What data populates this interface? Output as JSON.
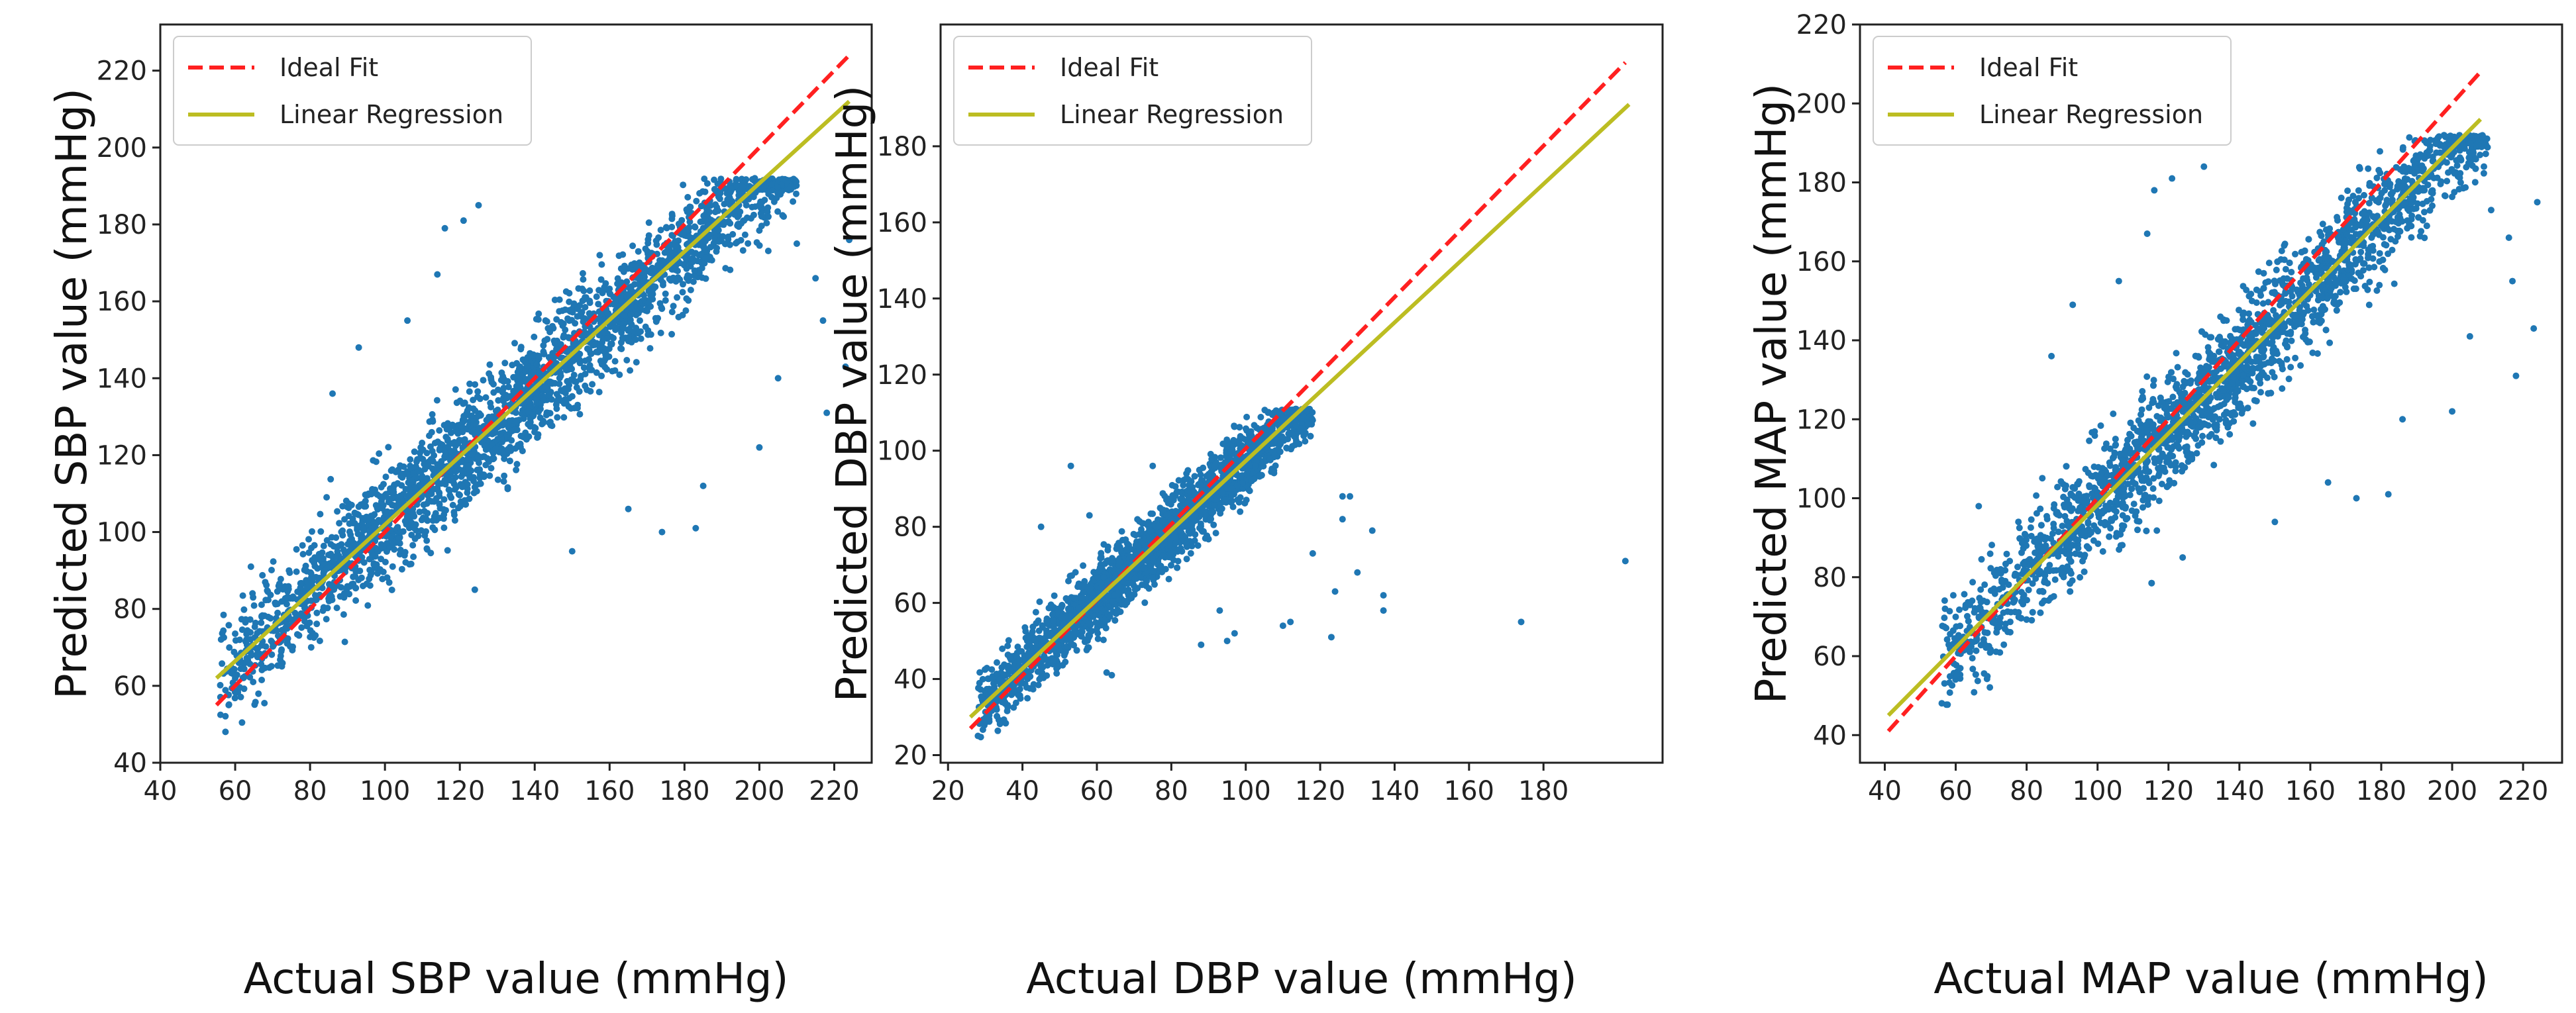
{
  "legend": {
    "ideal": "Ideal Fit",
    "regression": "Linear Regression"
  },
  "colors": {
    "points": "#1f77b4",
    "ideal": "#ff2020",
    "regression": "#bcbd22"
  },
  "chart_data": [
    {
      "type": "scatter",
      "id": "sbp",
      "xlabel": "Actual SBP value (mmHg)",
      "ylabel": "Predicted SBP value (mmHg)",
      "xlim": [
        40,
        230
      ],
      "ylim": [
        40,
        232
      ],
      "xticks": [
        40,
        60,
        80,
        100,
        120,
        140,
        160,
        180,
        200,
        220
      ],
      "yticks": [
        40,
        60,
        80,
        100,
        120,
        140,
        160,
        180,
        200,
        220
      ],
      "ideal_line": [
        [
          55,
          55
        ],
        [
          224,
          224
        ]
      ],
      "regression_line": [
        [
          55,
          62
        ],
        [
          224,
          212
        ]
      ],
      "cloud": {
        "x_range": [
          56,
          210
        ],
        "slope": 0.888,
        "intercept": 13.2,
        "spread": 7,
        "y_cap": 192
      },
      "outliers": [
        [
          63,
          72
        ],
        [
          60,
          62
        ],
        [
          86,
          136
        ],
        [
          93,
          148
        ],
        [
          106,
          155
        ],
        [
          116,
          179
        ],
        [
          121,
          181
        ],
        [
          125,
          185
        ],
        [
          114,
          167
        ],
        [
          150,
          95
        ],
        [
          165,
          106
        ],
        [
          183,
          101
        ],
        [
          200,
          122
        ],
        [
          205,
          140
        ],
        [
          210,
          175
        ],
        [
          215,
          166
        ],
        [
          217,
          155
        ],
        [
          218,
          131
        ],
        [
          223,
          143
        ],
        [
          224,
          176
        ],
        [
          124,
          85
        ],
        [
          174,
          100
        ],
        [
          185,
          112
        ]
      ]
    },
    {
      "type": "scatter",
      "id": "dbp",
      "xlabel": "Actual DBP value (mmHg)",
      "ylabel": "Predicted DBP value (mmHg)",
      "xlim": [
        18,
        212
      ],
      "ylim": [
        18,
        212
      ],
      "xticks": [
        20,
        40,
        60,
        80,
        100,
        120,
        140,
        160,
        180
      ],
      "yticks": [
        20,
        40,
        60,
        80,
        100,
        120,
        140,
        160,
        180
      ],
      "ideal_line": [
        [
          26,
          27
        ],
        [
          202,
          202
        ]
      ],
      "regression_line": [
        [
          26,
          30
        ],
        [
          203,
          191
        ]
      ],
      "cloud": {
        "x_range": [
          28,
          118
        ],
        "slope": 0.91,
        "intercept": 6.3,
        "spread": 4.5,
        "y_cap": 111
      },
      "outliers": [
        [
          53,
          96
        ],
        [
          75,
          96
        ],
        [
          45,
          80
        ],
        [
          58,
          83
        ],
        [
          126,
          88
        ],
        [
          128,
          88
        ],
        [
          126,
          82
        ],
        [
          134,
          79
        ],
        [
          118,
          73
        ],
        [
          130,
          68
        ],
        [
          137,
          62
        ],
        [
          137,
          58
        ],
        [
          124,
          63
        ],
        [
          112,
          55
        ],
        [
          110,
          54
        ],
        [
          123,
          51
        ],
        [
          174,
          55
        ],
        [
          202,
          71
        ],
        [
          93,
          58
        ],
        [
          95,
          50
        ],
        [
          97,
          52
        ],
        [
          88,
          49
        ],
        [
          64,
          41
        ]
      ]
    },
    {
      "type": "scatter",
      "id": "map",
      "xlabel": "Actual MAP value (mmHg)",
      "ylabel": "Predicted MAP value (mmHg)",
      "xlim": [
        33,
        231
      ],
      "ylim": [
        33,
        220
      ],
      "xticks": [
        40,
        60,
        80,
        100,
        120,
        140,
        160,
        180,
        200,
        220
      ],
      "yticks": [
        40,
        60,
        80,
        100,
        120,
        140,
        160,
        180,
        200,
        220
      ],
      "ideal_line": [
        [
          41,
          41
        ],
        [
          208,
          208
        ]
      ],
      "regression_line": [
        [
          41,
          45
        ],
        [
          208,
          196
        ]
      ],
      "cloud": {
        "x_range": [
          56,
          210
        ],
        "slope": 0.904,
        "intercept": 7.9,
        "spread": 7,
        "y_cap": 192
      },
      "outliers": [
        [
          57,
          72
        ],
        [
          87,
          136
        ],
        [
          93,
          149
        ],
        [
          106,
          155
        ],
        [
          116,
          178
        ],
        [
          121,
          181
        ],
        [
          130,
          184
        ],
        [
          114,
          167
        ],
        [
          150,
          94
        ],
        [
          165,
          104
        ],
        [
          182,
          101
        ],
        [
          200,
          122
        ],
        [
          205,
          141
        ],
        [
          211,
          173
        ],
        [
          216,
          166
        ],
        [
          217,
          155
        ],
        [
          218,
          131
        ],
        [
          223,
          143
        ],
        [
          224,
          175
        ],
        [
          124,
          85
        ],
        [
          173,
          100
        ],
        [
          186,
          120
        ]
      ]
    }
  ]
}
